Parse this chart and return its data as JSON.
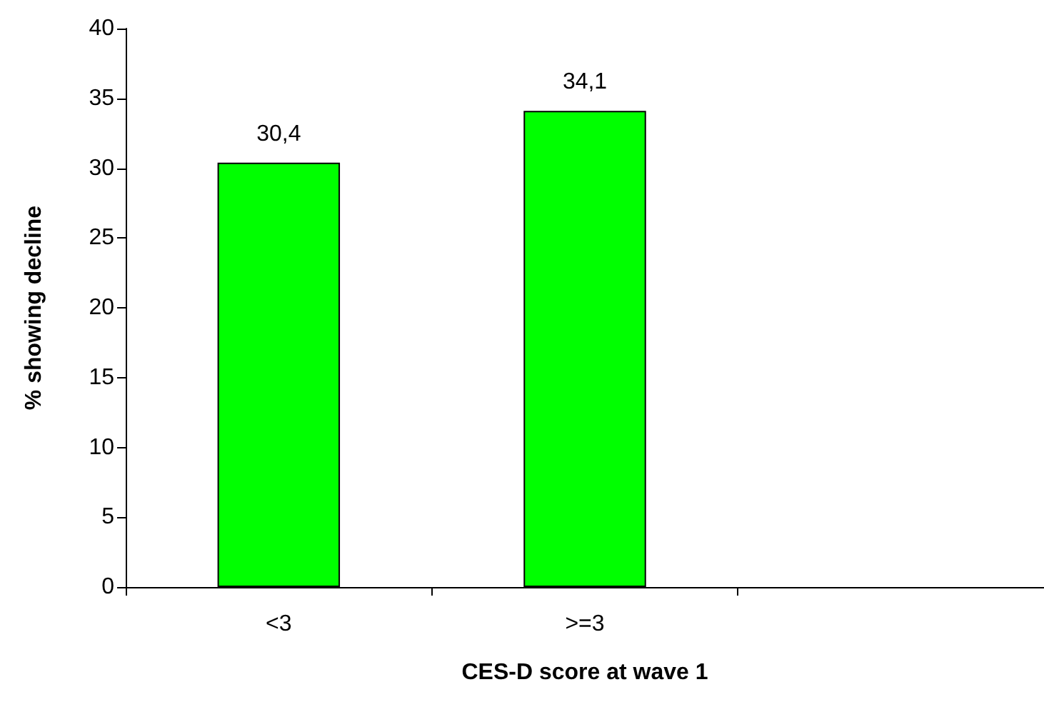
{
  "chart_data": {
    "type": "bar",
    "xlabel": "CES-D score at wave 1",
    "ylabel": "% showing decline",
    "categories": [
      "<3",
      ">=3",
      null
    ],
    "values": [
      30.4,
      34.1,
      null
    ],
    "color": "#00ff00",
    "value_labels": [
      "30,4",
      "34,1",
      null
    ],
    "ylim": [
      0,
      40
    ],
    "yticks": [
      0,
      5,
      10,
      15,
      20,
      25,
      30,
      35,
      40
    ],
    "grid": false
  }
}
